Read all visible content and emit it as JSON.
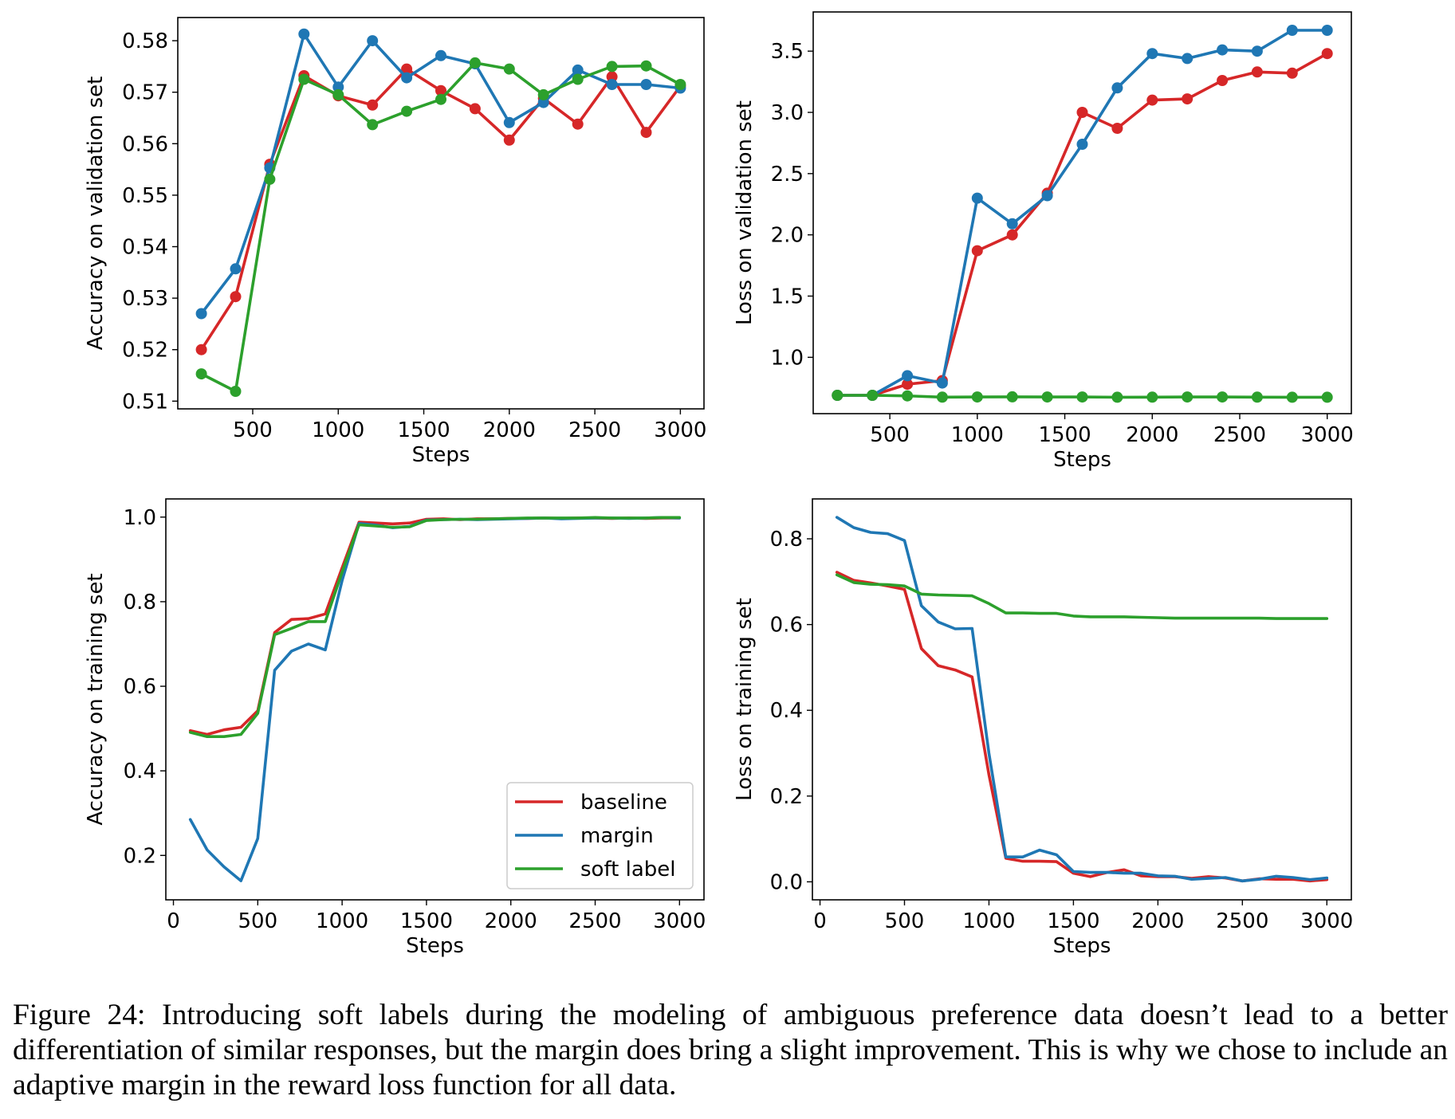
{
  "figure": {
    "caption": "Figure 24: Introducing soft labels during the modeling of ambiguous preference data doesn’t lead to a better differentiation of similar responses, but the margin does bring a slight improvement. This is why we chose to include an adaptive margin in the reward loss function for all data."
  },
  "colors": {
    "baseline": "#d62728",
    "margin": "#1f77b4",
    "soft label": "#2ca02c"
  },
  "chart_data": [
    {
      "id": "val-acc",
      "type": "line",
      "markers": true,
      "title": "",
      "xlabel": "Steps",
      "ylabel": "Accuracy on validation set",
      "xlim": [
        62,
        3138
      ],
      "ylim": [
        0.5085,
        0.5845
      ],
      "xticks": [
        500,
        1000,
        1500,
        2000,
        2500,
        3000
      ],
      "xtick_labels": [
        "500",
        "1000",
        "1500",
        "2000",
        "2500",
        "3000"
      ],
      "yticks": [
        0.51,
        0.52,
        0.53,
        0.54,
        0.55,
        0.56,
        0.57,
        0.58
      ],
      "ytick_labels": [
        "0.51",
        "0.52",
        "0.53",
        "0.54",
        "0.55",
        "0.56",
        "0.57",
        "0.58"
      ],
      "grid": false,
      "legend": null,
      "x": [
        200,
        400,
        600,
        800,
        1000,
        1200,
        1400,
        1600,
        1800,
        2000,
        2200,
        2400,
        2600,
        2800,
        3000
      ],
      "series": [
        {
          "name": "baseline",
          "values": [
            0.52,
            0.5303,
            0.556,
            0.5732,
            0.5693,
            0.5675,
            0.5745,
            0.5703,
            0.5668,
            0.5607,
            0.5688,
            0.5638,
            0.573,
            0.5622,
            0.5712
          ]
        },
        {
          "name": "margin",
          "values": [
            0.527,
            0.5357,
            0.5553,
            0.5813,
            0.571,
            0.58,
            0.5728,
            0.5771,
            0.5755,
            0.5641,
            0.568,
            0.5743,
            0.5715,
            0.5715,
            0.5708
          ]
        },
        {
          "name": "soft label",
          "values": [
            0.5153,
            0.5119,
            0.5531,
            0.5725,
            0.5695,
            0.5637,
            0.5663,
            0.5686,
            0.5757,
            0.5745,
            0.5695,
            0.5725,
            0.575,
            0.5751,
            0.5715
          ]
        }
      ]
    },
    {
      "id": "val-loss",
      "type": "line",
      "markers": true,
      "title": "",
      "xlabel": "Steps",
      "ylabel": "Loss on validation set",
      "xlim": [
        62,
        3138
      ],
      "ylim": [
        0.54,
        3.82
      ],
      "xticks": [
        500,
        1000,
        1500,
        2000,
        2500,
        3000
      ],
      "xtick_labels": [
        "500",
        "1000",
        "1500",
        "2000",
        "2500",
        "3000"
      ],
      "yticks": [
        1.0,
        1.5,
        2.0,
        2.5,
        3.0,
        3.5
      ],
      "ytick_labels": [
        "1.0",
        "1.5",
        "2.0",
        "2.5",
        "3.0",
        "3.5"
      ],
      "grid": false,
      "legend": null,
      "x": [
        200,
        400,
        600,
        800,
        1000,
        1200,
        1400,
        1600,
        1800,
        2000,
        2200,
        2400,
        2600,
        2800,
        3000
      ],
      "series": [
        {
          "name": "baseline",
          "values": [
            0.69,
            0.69,
            0.78,
            0.81,
            1.87,
            2.0,
            2.34,
            3.0,
            2.87,
            3.1,
            3.11,
            3.26,
            3.33,
            3.32,
            3.48
          ]
        },
        {
          "name": "margin",
          "values": [
            0.69,
            0.69,
            0.85,
            0.79,
            2.3,
            2.09,
            2.32,
            2.74,
            3.2,
            3.48,
            3.44,
            3.51,
            3.5,
            3.67,
            3.67
          ]
        },
        {
          "name": "soft label",
          "values": [
            0.69,
            0.69,
            0.685,
            0.675,
            0.676,
            0.677,
            0.676,
            0.676,
            0.674,
            0.675,
            0.676,
            0.676,
            0.675,
            0.674,
            0.674
          ]
        }
      ]
    },
    {
      "id": "train-acc",
      "type": "line",
      "markers": false,
      "title": "",
      "xlabel": "Steps",
      "ylabel": "Accuracy on training set",
      "xlim": [
        -45,
        3145
      ],
      "ylim": [
        0.095,
        1.043
      ],
      "xticks": [
        0,
        500,
        1000,
        1500,
        2000,
        2500,
        3000
      ],
      "xtick_labels": [
        "0",
        "500",
        "1000",
        "1500",
        "2000",
        "2500",
        "3000"
      ],
      "yticks": [
        0.2,
        0.4,
        0.6,
        0.8,
        1.0
      ],
      "ytick_labels": [
        "0.2",
        "0.4",
        "0.6",
        "0.8",
        "1.0"
      ],
      "grid": false,
      "legend": {
        "position": "lower-right",
        "entries": [
          "baseline",
          "margin",
          "soft label"
        ]
      },
      "x": [
        100,
        200,
        300,
        400,
        500,
        600,
        700,
        800,
        900,
        1000,
        1100,
        1200,
        1300,
        1400,
        1500,
        1600,
        1700,
        1800,
        1900,
        2000,
        2100,
        2200,
        2300,
        2400,
        2500,
        2600,
        2700,
        2800,
        2900,
        3000
      ],
      "series": [
        {
          "name": "baseline",
          "values": [
            0.495,
            0.486,
            0.497,
            0.503,
            0.542,
            0.727,
            0.758,
            0.76,
            0.771,
            0.88,
            0.988,
            0.986,
            0.984,
            0.986,
            0.995,
            0.996,
            0.994,
            0.996,
            0.996,
            0.997,
            0.997,
            0.998,
            0.997,
            0.998,
            0.998,
            0.997,
            0.998,
            0.997,
            0.998,
            0.998
          ]
        },
        {
          "name": "margin",
          "values": [
            0.285,
            0.213,
            0.173,
            0.14,
            0.24,
            0.638,
            0.683,
            0.7,
            0.686,
            0.85,
            0.985,
            0.981,
            0.975,
            0.978,
            0.993,
            0.994,
            0.995,
            0.994,
            0.995,
            0.996,
            0.997,
            0.998,
            0.996,
            0.997,
            0.998,
            0.998,
            0.997,
            0.998,
            0.999,
            0.998
          ]
        },
        {
          "name": "soft label",
          "values": [
            0.491,
            0.481,
            0.481,
            0.486,
            0.536,
            0.722,
            0.737,
            0.753,
            0.753,
            0.87,
            0.982,
            0.979,
            0.976,
            0.977,
            0.992,
            0.994,
            0.995,
            0.995,
            0.996,
            0.997,
            0.998,
            0.998,
            0.998,
            0.998,
            0.999,
            0.998,
            0.998,
            0.998,
            0.999,
            0.999
          ]
        }
      ]
    },
    {
      "id": "train-loss",
      "type": "line",
      "markers": false,
      "title": "",
      "xlabel": "Steps",
      "ylabel": "Loss on training set",
      "xlim": [
        -45,
        3145
      ],
      "ylim": [
        -0.042,
        0.893
      ],
      "xticks": [
        0,
        500,
        1000,
        1500,
        2000,
        2500,
        3000
      ],
      "xtick_labels": [
        "0",
        "500",
        "1000",
        "1500",
        "2000",
        "2500",
        "3000"
      ],
      "yticks": [
        0.0,
        0.2,
        0.4,
        0.6,
        0.8
      ],
      "ytick_labels": [
        "0.0",
        "0.2",
        "0.4",
        "0.6",
        "0.8"
      ],
      "grid": false,
      "legend": null,
      "x": [
        100,
        200,
        300,
        400,
        500,
        600,
        700,
        800,
        900,
        1000,
        1100,
        1200,
        1300,
        1400,
        1500,
        1600,
        1700,
        1800,
        1900,
        2000,
        2100,
        2200,
        2300,
        2400,
        2500,
        2600,
        2700,
        2800,
        2900,
        3000
      ],
      "series": [
        {
          "name": "baseline",
          "values": [
            0.722,
            0.703,
            0.697,
            0.69,
            0.682,
            0.544,
            0.504,
            0.494,
            0.478,
            0.25,
            0.055,
            0.048,
            0.048,
            0.047,
            0.02,
            0.012,
            0.022,
            0.028,
            0.014,
            0.012,
            0.012,
            0.008,
            0.012,
            0.009,
            0.002,
            0.007,
            0.006,
            0.006,
            0.002,
            0.005
          ]
        },
        {
          "name": "margin",
          "values": [
            0.85,
            0.826,
            0.815,
            0.812,
            0.796,
            0.644,
            0.606,
            0.59,
            0.591,
            0.3,
            0.058,
            0.058,
            0.074,
            0.063,
            0.024,
            0.022,
            0.022,
            0.02,
            0.02,
            0.014,
            0.013,
            0.006,
            0.008,
            0.01,
            0.002,
            0.006,
            0.013,
            0.01,
            0.005,
            0.009
          ]
        },
        {
          "name": "soft label",
          "values": [
            0.716,
            0.698,
            0.694,
            0.693,
            0.69,
            0.671,
            0.669,
            0.668,
            0.667,
            0.649,
            0.627,
            0.627,
            0.626,
            0.626,
            0.62,
            0.618,
            0.618,
            0.618,
            0.617,
            0.616,
            0.615,
            0.615,
            0.615,
            0.615,
            0.615,
            0.615,
            0.614,
            0.614,
            0.614,
            0.614
          ]
        }
      ]
    }
  ]
}
